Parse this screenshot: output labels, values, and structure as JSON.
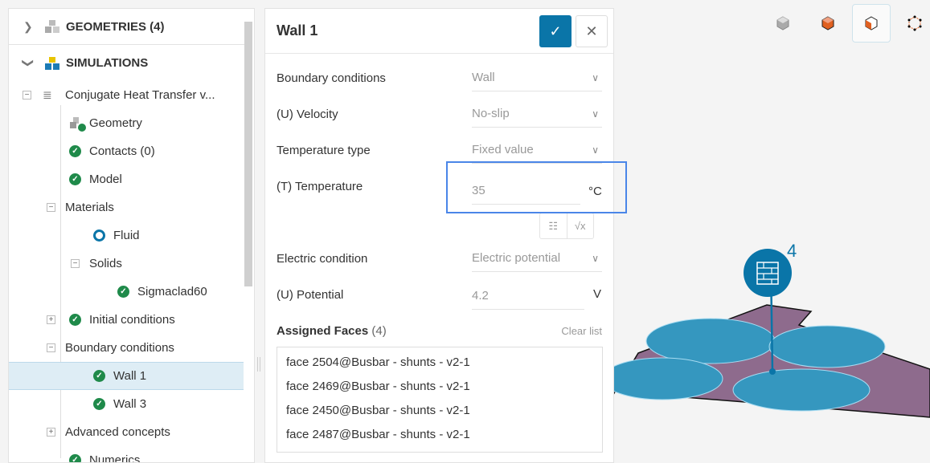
{
  "tree": {
    "geometries": "GEOMETRIES (4)",
    "simulations": "SIMULATIONS",
    "items": [
      {
        "label": "Conjugate Heat Transfer v..."
      },
      {
        "label": "Geometry"
      },
      {
        "label": "Contacts (0)"
      },
      {
        "label": "Model"
      },
      {
        "label": "Materials"
      },
      {
        "label": "Fluid"
      },
      {
        "label": "Solids"
      },
      {
        "label": "Sigmaclad60"
      },
      {
        "label": "Initial conditions"
      },
      {
        "label": "Boundary conditions"
      },
      {
        "label": "Wall 1"
      },
      {
        "label": "Wall 3"
      },
      {
        "label": "Advanced concepts"
      },
      {
        "label": "Numerics"
      }
    ]
  },
  "panel": {
    "title": "Wall 1",
    "fields": {
      "bc_label": "Boundary conditions",
      "bc_value": "Wall",
      "vel_label": "(U) Velocity",
      "vel_value": "No-slip",
      "ttype_label": "Temperature type",
      "ttype_value": "Fixed value",
      "temp_label": "(T) Temperature",
      "temp_value": "35",
      "temp_unit": "°C",
      "elec_label": "Electric condition",
      "elec_value": "Electric potential",
      "pot_label": "(U) Potential",
      "pot_value": "4.2",
      "pot_unit": "V"
    },
    "assigned_label": "Assigned Faces",
    "assigned_count": "(4)",
    "clear": "Clear list",
    "faces": [
      "face 2504@Busbar - shunts - v2-1",
      "face 2469@Busbar - shunts - v2-1",
      "face 2450@Busbar - shunts - v2-1",
      "face 2487@Busbar - shunts - v2-1"
    ]
  },
  "viewer": {
    "marker_count": "4"
  },
  "colors": {
    "accent": "#0a75a8",
    "highlight": "#4a86e8",
    "success": "#1f8a4a",
    "body": "#8e6b8d",
    "face": "#3597bf"
  }
}
